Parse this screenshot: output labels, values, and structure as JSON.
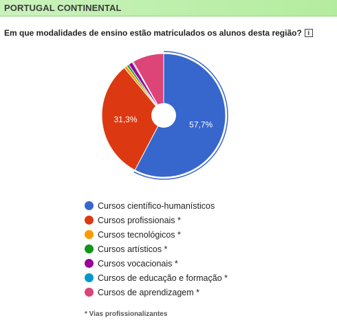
{
  "header": {
    "title": "PORTUGAL CONTINENTAL"
  },
  "question": {
    "text": "Em que modalidades de ensino estão matriculados os alunos desta região?",
    "info_icon": "info-icon"
  },
  "chart_data": {
    "type": "pie",
    "title": "",
    "donut": true,
    "slices": [
      {
        "name": "Cursos científico-humanísticos",
        "value": 57.7,
        "label": "57,7%",
        "color": "#3766cc"
      },
      {
        "name": "Cursos profissionais *",
        "value": 31.3,
        "label": "31,3%",
        "color": "#dc3912"
      },
      {
        "name": "Cursos tecnológicos *",
        "value": 0.8,
        "label": "",
        "color": "#ff9900"
      },
      {
        "name": "Cursos artísticos *",
        "value": 0.6,
        "label": "",
        "color": "#109618"
      },
      {
        "name": "Cursos vocacionais *",
        "value": 1.1,
        "label": "",
        "color": "#990099"
      },
      {
        "name": "Cursos de educação e formação *",
        "value": 0.3,
        "label": "",
        "color": "#0099c6"
      },
      {
        "name": "Cursos de aprendizagem *",
        "value": 8.2,
        "label": "",
        "color": "#dd4477"
      }
    ],
    "legend_position": "bottom"
  },
  "footnote": "* Vias profissionalizantes"
}
